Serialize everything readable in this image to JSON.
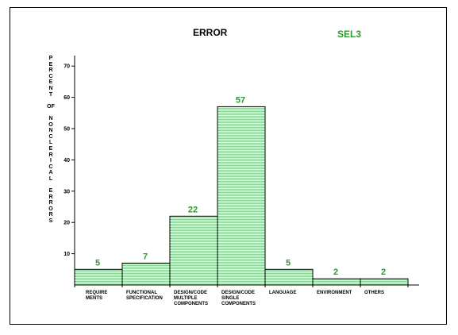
{
  "colors": {
    "bar_fill": "#eaf6ee",
    "bar_stripe": "#8fcf9a",
    "bar_border": "#000000",
    "value_label": "#2a9a2a",
    "subtitle": "#2a9a2a",
    "text": "#000000"
  },
  "chart_data": {
    "type": "bar",
    "title": "ERROR",
    "subtitle": "SEL3",
    "ylabel": "PERCENT OF NONCLERICAL ERRORS",
    "ylabel_words": [
      "PERCENT",
      "OF",
      "NONCLERICAL",
      "ERRORS"
    ],
    "xlabel": "",
    "ylim": [
      0,
      80
    ],
    "yticks": [
      10,
      20,
      30,
      40,
      50,
      60,
      70
    ],
    "grid": false,
    "categories": [
      [
        "REQUIRE",
        "MENTS"
      ],
      [
        "FUNCTIONAL",
        "SPECIFICATION"
      ],
      [
        "DESIGN/CODE",
        "MULTIPLE",
        "COMPONENTS"
      ],
      [
        "DESIGN/CODE",
        "SINGLE",
        "COMPONENTS"
      ],
      [
        "LANGUAGE"
      ],
      [
        "ENVIRONMENT"
      ],
      [
        "OTHERS"
      ]
    ],
    "values": [
      5,
      7,
      22,
      57,
      5,
      2,
      2
    ],
    "value_labels": [
      "5",
      "7",
      "22",
      "57",
      "5",
      "2",
      "2"
    ]
  }
}
